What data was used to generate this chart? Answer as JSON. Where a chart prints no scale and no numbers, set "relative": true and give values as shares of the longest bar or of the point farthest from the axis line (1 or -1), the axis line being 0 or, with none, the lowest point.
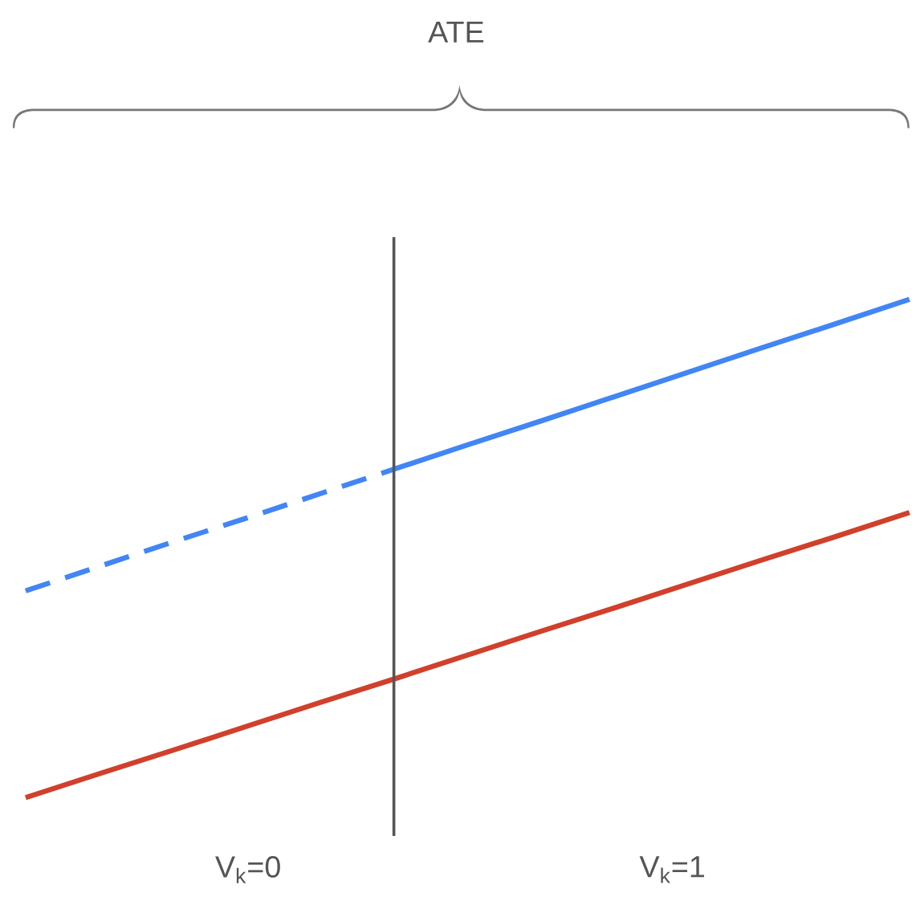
{
  "chart_data": {
    "type": "line",
    "relative": true,
    "categories": [
      null,
      null,
      null,
      null,
      null,
      null,
      null,
      null,
      null,
      null,
      null,
      null,
      null
    ],
    "series": [
      {
        "color": "#4285f4",
        "line_style": "dashed",
        "values": [
          0.415,
          0.464,
          0.513,
          0.561,
          0.61,
          0.659,
          null,
          null,
          null,
          null,
          null,
          null,
          null
        ]
      },
      {
        "color": "#4285f4",
        "line_style": "solid",
        "values": [
          null,
          null,
          null,
          null,
          null,
          0.659,
          0.708,
          0.756,
          0.805,
          0.854,
          0.903,
          0.951,
          1
        ]
      },
      {
        "color": "#d0402b",
        "line_style": "solid",
        "values": [
          0,
          0.048,
          0.095,
          0.143,
          0.191,
          0.238,
          0.286,
          0.334,
          0.381,
          0.429,
          0.477,
          0.524,
          0.572
        ]
      }
    ],
    "annotations": [
      "V$_{k}$=0",
      "V$_{k}$=1",
      "ATE"
    ]
  }
}
